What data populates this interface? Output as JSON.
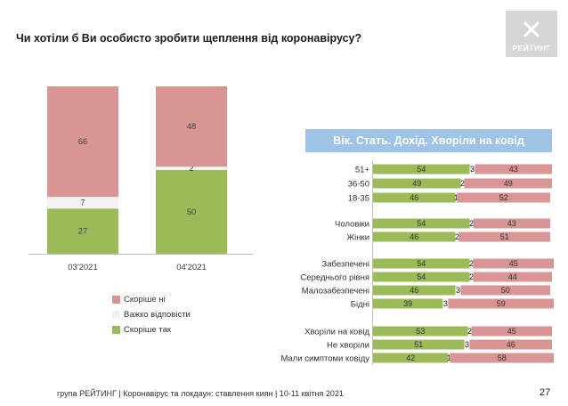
{
  "title": "Чи хотіли б Ви особисто зробити щеплення від коронавірусу?",
  "logo_text": "РЕЙТИНГ",
  "banner": "Вік. Стать. Дохід. Хворіли на ковід",
  "footer": "група РЕЙТИНГ  | Коронавірус та локдаун: ставлення киян  | 10-11 квітня 2021",
  "page_number": "27",
  "colors": {
    "yes": "#9bbb59",
    "hard": "#f2f2f2",
    "no": "#d99594",
    "banner": "#9dc3e6"
  },
  "chart_data": [
    {
      "type": "bar",
      "stacked": true,
      "categories": [
        "03'2021",
        "04'2021"
      ],
      "series": [
        {
          "name": "Скоріше так",
          "values": [
            27,
            50
          ]
        },
        {
          "name": "Важко відповісти",
          "values": [
            7,
            2
          ]
        },
        {
          "name": "Скоріше ні",
          "values": [
            66,
            48
          ]
        }
      ],
      "ylim": [
        0,
        100
      ],
      "legend_position": "bottom"
    },
    {
      "type": "bar",
      "orientation": "horizontal",
      "stacked": true,
      "title": "Вік. Стать. Дохід. Хворіли на ковід",
      "groups": [
        [
          "51+",
          "36-50",
          "18-35"
        ],
        [
          "Чоловіки",
          "Жінки"
        ],
        [
          "Забезпечені",
          "Середнього рівня",
          "Малозабезпечені",
          "Бідні"
        ],
        [
          "Хворіли на ковід",
          "Не хворіли",
          "Мали симптоми ковіду"
        ]
      ],
      "categories": [
        "51+",
        "36-50",
        "18-35",
        "Чоловіки",
        "Жінки",
        "Забезпечені",
        "Середнього рівня",
        "Малозабезпечені",
        "Бідні",
        "Хворіли на ковід",
        "Не хворіли",
        "Мали симптоми ковіду"
      ],
      "series": [
        {
          "name": "Скоріше так",
          "values": [
            54,
            49,
            46,
            54,
            46,
            54,
            54,
            46,
            39,
            53,
            51,
            42
          ]
        },
        {
          "name": "Важко відповісти",
          "values": [
            3,
            2,
            1,
            2,
            2,
            2,
            2,
            3,
            3,
            2,
            3,
            1
          ]
        },
        {
          "name": "Скоріше ні",
          "values": [
            43,
            49,
            52,
            43,
            51,
            45,
            44,
            50,
            59,
            45,
            46,
            58
          ]
        }
      ],
      "xlim": [
        0,
        100
      ]
    }
  ]
}
